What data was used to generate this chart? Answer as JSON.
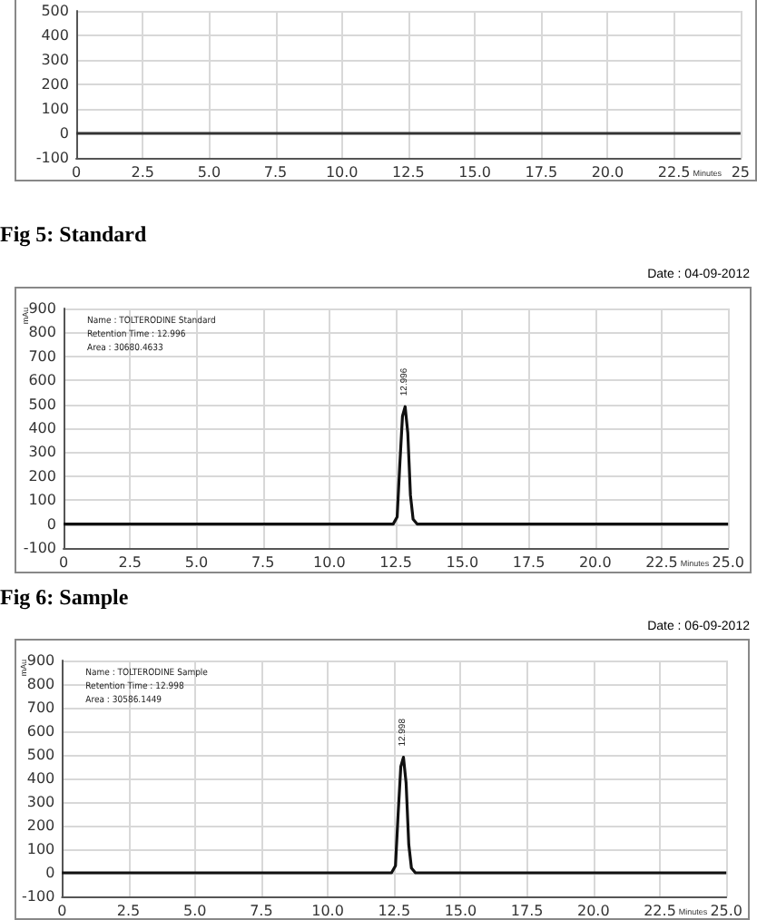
{
  "chart_data": [
    {
      "type": "line",
      "xlabel": "Minutes",
      "x": [
        0,
        25
      ],
      "series": [
        {
          "color": "#333333",
          "values": [
            0,
            0
          ]
        }
      ],
      "xlim": [
        0,
        25
      ],
      "xticks": [
        0,
        2.5,
        {
          "value": 5,
          "label": "5.0"
        },
        {
          "value": 7.5,
          "label": "7.5"
        },
        {
          "value": 10,
          "label": "10.0"
        },
        12.5,
        {
          "value": 15,
          "label": "15.0"
        },
        17.5,
        {
          "value": 20,
          "label": "20.0"
        },
        22.5,
        25
      ],
      "ylim": [
        -100,
        500
      ],
      "yticks": [
        -100,
        0,
        100,
        200,
        300,
        400,
        500
      ],
      "grid": true,
      "marker": "none"
    },
    {
      "type": "line",
      "title": "Fig 5: Standard",
      "xlabel": "Minutes",
      "ylabel": "mAu",
      "x": [
        0,
        12.4,
        12.55,
        12.65,
        12.75,
        12.85,
        12.95,
        13.05,
        13.15,
        13.3,
        25
      ],
      "series": [
        {
          "color": "#111111",
          "values": [
            0,
            0,
            30,
            250,
            450,
            490,
            380,
            120,
            20,
            0,
            0
          ]
        }
      ],
      "annotations": [
        "Date : 04-09-2012",
        "Name : TOLTERODINE Standard",
        "Retention Time : 12.996",
        "Area : 30680.4633",
        {
          "text": "12.996",
          "x": 12.85,
          "y": 490
        }
      ],
      "xlim": [
        0,
        25
      ],
      "xticks": [
        0,
        2.5,
        {
          "value": 5,
          "label": "5.0"
        },
        {
          "value": 7.5,
          "label": "7.5"
        },
        {
          "value": 10,
          "label": "10.0"
        },
        12.5,
        {
          "value": 15,
          "label": "15.0"
        },
        17.5,
        {
          "value": 20,
          "label": "20.0"
        },
        22.5,
        {
          "value": 25,
          "label": "25.0"
        }
      ],
      "ylim": [
        -100,
        900
      ],
      "yticks": [
        -100,
        0,
        100,
        200,
        300,
        400,
        500,
        600,
        700,
        800,
        900
      ],
      "grid": true,
      "marker": "none"
    },
    {
      "type": "line",
      "title": "Fig 6: Sample",
      "xlabel": "Minutes",
      "ylabel": "mAu",
      "x": [
        0,
        12.4,
        12.55,
        12.65,
        12.75,
        12.85,
        12.95,
        13.05,
        13.15,
        13.3,
        25
      ],
      "series": [
        {
          "color": "#111111",
          "values": [
            0,
            0,
            30,
            250,
            450,
            490,
            380,
            120,
            20,
            0,
            0
          ]
        }
      ],
      "annotations": [
        "Date : 06-09-2012",
        "Name : TOLTERODINE Sample",
        "Retention Time : 12.998",
        "Area : 30586.1449",
        {
          "text": "12.998",
          "x": 12.85,
          "y": 490
        }
      ],
      "xlim": [
        0,
        25
      ],
      "xticks": [
        0,
        2.5,
        {
          "value": 5,
          "label": "5.0"
        },
        {
          "value": 7.5,
          "label": "7.5"
        },
        {
          "value": 10,
          "label": "10.0"
        },
        12.5,
        {
          "value": 15,
          "label": "15.0"
        },
        17.5,
        {
          "value": 20,
          "label": "20.0"
        },
        22.5,
        {
          "value": 25,
          "label": "25.0"
        }
      ],
      "ylim": [
        -100,
        900
      ],
      "yticks": [
        -100,
        0,
        100,
        200,
        300,
        400,
        500,
        600,
        700,
        800,
        900
      ],
      "grid": true,
      "marker": "none"
    }
  ]
}
